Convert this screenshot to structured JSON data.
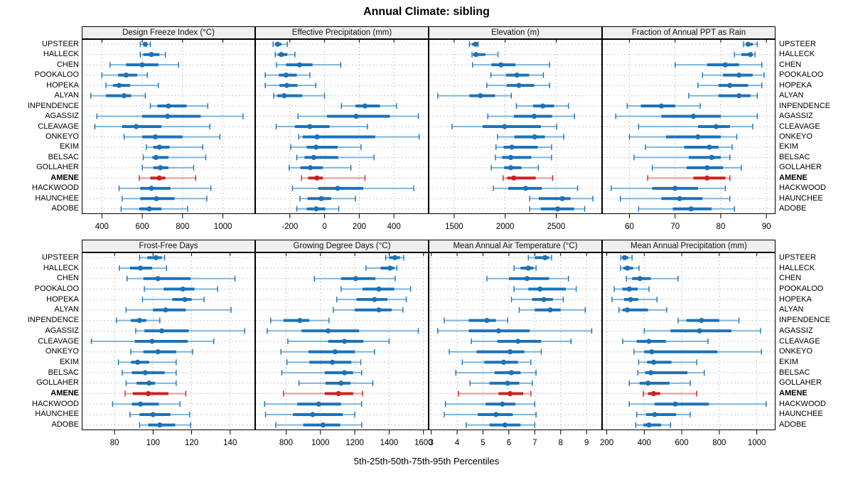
{
  "title": "Annual Climate: sibling",
  "caption": "5th-25th-50th-75th-95th Percentiles",
  "colors": {
    "series": "#1c72b8",
    "series_light": "#7fb5dc",
    "highlight": "#cc2222",
    "highlight_light": "#e09a9a",
    "strip_bg": "#efefef",
    "grid": "#c9c9c9",
    "border": "#000000"
  },
  "stations": [
    "UPSTEER",
    "HALLECK",
    "CHEN",
    "POOKALOO",
    "HOPEKA",
    "ALYAN",
    "INPENDENCE",
    "AGASSIZ",
    "CLEAVAGE",
    "ONKEYO",
    "EKIM",
    "BELSAC",
    "GOLLAHER",
    "AMENE",
    "HACKWOOD",
    "HAUNCHEE",
    "ADOBE"
  ],
  "highlight_station": "AMENE",
  "chart_data": {
    "type": "dotplot-percentiles",
    "percentiles": [
      5,
      25,
      50,
      75,
      95
    ],
    "legend_position": "none",
    "grid": "dotted",
    "panels": [
      {
        "title": "Design Freeze Index (°C)",
        "row": 0,
        "col": 0,
        "ticks": [
          400,
          600,
          800,
          1000
        ],
        "range": [
          300,
          1160
        ],
        "values": [
          [
            590,
            605,
            615,
            625,
            640
          ],
          [
            590,
            605,
            645,
            685,
            715
          ],
          [
            440,
            520,
            600,
            680,
            780
          ],
          [
            400,
            480,
            520,
            575,
            625
          ],
          [
            420,
            455,
            485,
            540,
            680
          ],
          [
            345,
            420,
            510,
            545,
            615
          ],
          [
            640,
            675,
            730,
            820,
            925
          ],
          [
            375,
            600,
            725,
            890,
            1100
          ],
          [
            365,
            500,
            570,
            695,
            935
          ],
          [
            510,
            600,
            665,
            800,
            985
          ],
          [
            620,
            655,
            685,
            735,
            900
          ],
          [
            605,
            650,
            668,
            730,
            915
          ],
          [
            600,
            655,
            690,
            730,
            855
          ],
          [
            585,
            640,
            685,
            715,
            865
          ],
          [
            485,
            590,
            645,
            740,
            940
          ],
          [
            500,
            590,
            670,
            760,
            920
          ],
          [
            495,
            585,
            635,
            695,
            825
          ]
        ]
      },
      {
        "title": "Effective Precipitation (mm)",
        "row": 0,
        "col": 1,
        "ticks": [
          -200,
          0,
          200,
          400
        ],
        "range": [
          -400,
          600
        ],
        "values": [
          [
            -297,
            -286,
            -271,
            -249,
            -215
          ],
          [
            -284,
            -270,
            -249,
            -215,
            -171
          ],
          [
            -277,
            -222,
            -144,
            -69,
            93
          ],
          [
            -342,
            -263,
            -222,
            -160,
            -85
          ],
          [
            -342,
            -260,
            -218,
            -156,
            -51
          ],
          [
            -293,
            -274,
            -233,
            -129,
            0
          ],
          [
            97,
            179,
            233,
            319,
            415
          ],
          [
            -153,
            14,
            182,
            377,
            541
          ],
          [
            -279,
            -171,
            -85,
            29,
            247
          ],
          [
            -149,
            -126,
            -43,
            292,
            545
          ],
          [
            -195,
            -103,
            -49,
            75,
            210
          ],
          [
            -160,
            -116,
            -62,
            79,
            285
          ],
          [
            -204,
            -140,
            -82,
            -10,
            152
          ],
          [
            -133,
            -95,
            -44,
            -10,
            233
          ],
          [
            -185,
            -37,
            75,
            223,
            514
          ],
          [
            -142,
            -98,
            -19,
            38,
            178
          ],
          [
            -160,
            -103,
            -48,
            4,
            82
          ]
        ]
      },
      {
        "title": "Elevation (m)",
        "row": 0,
        "col": 2,
        "ticks": [
          1500,
          2000,
          2500
        ],
        "range": [
          1250,
          2950
        ],
        "values": [
          [
            1650,
            1675,
            1710,
            1726,
            1735
          ],
          [
            1675,
            1685,
            1715,
            1805,
            1930
          ],
          [
            1680,
            1865,
            1960,
            2100,
            2435
          ],
          [
            1860,
            2010,
            2115,
            2235,
            2375
          ],
          [
            1820,
            2015,
            2135,
            2285,
            2435
          ],
          [
            1340,
            1650,
            1757,
            1900,
            2060
          ],
          [
            2110,
            2275,
            2370,
            2480,
            2620
          ],
          [
            1830,
            2085,
            2285,
            2460,
            2680
          ],
          [
            1480,
            1780,
            1995,
            2350,
            2505
          ],
          [
            1925,
            2090,
            2290,
            2390,
            2575
          ],
          [
            1910,
            1985,
            2065,
            2320,
            2455
          ],
          [
            1905,
            1970,
            2055,
            2255,
            2455
          ],
          [
            1865,
            1990,
            2055,
            2160,
            2325
          ],
          [
            1980,
            2020,
            2085,
            2300,
            2465
          ],
          [
            1885,
            2030,
            2200,
            2360,
            2710
          ],
          [
            2240,
            2330,
            2560,
            2640,
            2860
          ],
          [
            2240,
            2350,
            2515,
            2675,
            2780
          ]
        ]
      },
      {
        "title": "Fraction of Annual PPT as Rain",
        "row": 0,
        "col": 3,
        "ticks": [
          60,
          70,
          80,
          90
        ],
        "range": [
          54,
          92
        ],
        "values": [
          [
            85,
            85.5,
            86,
            87,
            88
          ],
          [
            83,
            84.5,
            86.5,
            87,
            87.5
          ],
          [
            70,
            77,
            81,
            84,
            89
          ],
          [
            76,
            80.5,
            84,
            87,
            89.5
          ],
          [
            75,
            79.5,
            82,
            86,
            89
          ],
          [
            73,
            79.5,
            84,
            86.5,
            88
          ],
          [
            59.5,
            62.5,
            67,
            70,
            75.5
          ],
          [
            57,
            67,
            74,
            80,
            88
          ],
          [
            62,
            75,
            79,
            82,
            87
          ],
          [
            60,
            68,
            75,
            80,
            83.5
          ],
          [
            63.5,
            72,
            77.5,
            79.5,
            82.5
          ],
          [
            61,
            73,
            78,
            80,
            82
          ],
          [
            65,
            72.5,
            77,
            80.5,
            84.5
          ],
          [
            64,
            74,
            77,
            81,
            82
          ],
          [
            56,
            65,
            70,
            75,
            81
          ],
          [
            58,
            67,
            71,
            76,
            82
          ],
          [
            62,
            69.5,
            73.5,
            78,
            83
          ]
        ]
      },
      {
        "title": "Frost-Free Days",
        "row": 1,
        "col": 0,
        "ticks": [
          80,
          100,
          120,
          140
        ],
        "range": [
          63,
          153
        ],
        "values": [
          [
            93,
            97,
            101.5,
            104.5,
            106
          ],
          [
            82.5,
            88,
            93.5,
            99.5,
            107
          ],
          [
            86.5,
            95,
            102.5,
            119.5,
            142.5
          ],
          [
            95.5,
            105.5,
            115.5,
            121.5,
            133.5
          ],
          [
            94.5,
            110,
            116.5,
            120,
            126.5
          ],
          [
            86,
            100,
            106.5,
            117,
            140.5
          ],
          [
            81,
            88.5,
            93,
            96.5,
            103.5
          ],
          [
            91,
            95.5,
            104.5,
            118.5,
            147.5
          ],
          [
            68,
            90.5,
            99.5,
            118,
            131.5
          ],
          [
            88.5,
            95,
            102.5,
            112,
            120.5
          ],
          [
            82,
            88.5,
            92,
            98,
            112
          ],
          [
            84,
            89,
            96,
            106,
            112
          ],
          [
            86,
            91.5,
            98,
            101,
            112
          ],
          [
            85.5,
            89.5,
            97.5,
            108,
            117
          ],
          [
            79,
            89,
            93.5,
            103,
            114
          ],
          [
            88,
            93,
            100,
            109,
            119
          ],
          [
            93,
            97.5,
            103.5,
            111.5,
            119.5
          ]
        ]
      },
      {
        "title": "Growing Degree Days (°C)",
        "row": 1,
        "col": 1,
        "ticks": [
          800,
          1000,
          1200,
          1400,
          1600
        ],
        "range": [
          620,
          1630
        ],
        "values": [
          [
            1380,
            1400,
            1433,
            1463,
            1485
          ],
          [
            1265,
            1350,
            1405,
            1430,
            1445
          ],
          [
            965,
            1120,
            1205,
            1320,
            1435
          ],
          [
            1120,
            1245,
            1340,
            1430,
            1525
          ],
          [
            1095,
            1210,
            1315,
            1390,
            1500
          ],
          [
            1075,
            1200,
            1340,
            1415,
            1480
          ],
          [
            710,
            785,
            880,
            935,
            1050
          ],
          [
            690,
            890,
            1045,
            1225,
            1570
          ],
          [
            810,
            1045,
            1140,
            1250,
            1400
          ],
          [
            770,
            930,
            1085,
            1200,
            1315
          ],
          [
            805,
            935,
            1070,
            1180,
            1235
          ],
          [
            775,
            1025,
            1140,
            1190,
            1240
          ],
          [
            875,
            1030,
            1120,
            1175,
            1305
          ],
          [
            785,
            1025,
            1105,
            1190,
            1245
          ],
          [
            675,
            865,
            990,
            1120,
            1240
          ],
          [
            680,
            840,
            955,
            1130,
            1200
          ],
          [
            740,
            900,
            1015,
            1115,
            1240
          ]
        ]
      },
      {
        "title": "Mean Annual Air Temperature (°C)",
        "row": 1,
        "col": 2,
        "ticks": [
          3,
          4,
          5,
          6,
          7,
          8,
          9
        ],
        "range": [
          2.9,
          9.6
        ],
        "values": [
          [
            6.75,
            7.0,
            7.4,
            7.55,
            7.65
          ],
          [
            6.2,
            6.45,
            6.75,
            6.95,
            7.05
          ],
          [
            5.15,
            6.0,
            6.7,
            7.55,
            8.3
          ],
          [
            6.2,
            6.75,
            7.2,
            8.2,
            8.6
          ],
          [
            6.1,
            6.9,
            7.35,
            7.7,
            8.1
          ],
          [
            6.4,
            7.0,
            7.6,
            8.0,
            8.95
          ],
          [
            3.5,
            4.45,
            5.15,
            5.5,
            5.95
          ],
          [
            3.25,
            4.45,
            5.6,
            6.8,
            9.2
          ],
          [
            4.55,
            5.55,
            6.35,
            7.25,
            8.4
          ],
          [
            3.7,
            4.75,
            6.05,
            6.6,
            7.25
          ],
          [
            4.2,
            5.05,
            5.8,
            6.35,
            6.85
          ],
          [
            3.95,
            5.45,
            6.1,
            6.45,
            7.05
          ],
          [
            4.5,
            5.25,
            5.95,
            6.4,
            6.9
          ],
          [
            4.05,
            5.6,
            6.05,
            6.55,
            6.85
          ],
          [
            3.55,
            5.1,
            5.75,
            6.25,
            7.0
          ],
          [
            3.5,
            4.8,
            5.5,
            6.15,
            7.05
          ],
          [
            4.35,
            5.25,
            5.85,
            6.45,
            7.0
          ]
        ]
      },
      {
        "title": "Mean Annual Precipitation (mm)",
        "row": 1,
        "col": 3,
        "ticks": [
          200,
          400,
          600,
          800,
          1000
        ],
        "range": [
          175,
          1100
        ],
        "values": [
          [
            275,
            282,
            295,
            315,
            335
          ],
          [
            273,
            288,
            310,
            340,
            372
          ],
          [
            305,
            335,
            377,
            435,
            580
          ],
          [
            240,
            283,
            320,
            365,
            425
          ],
          [
            228,
            292,
            327,
            368,
            468
          ],
          [
            265,
            285,
            310,
            420,
            520
          ],
          [
            580,
            625,
            705,
            800,
            905
          ],
          [
            400,
            540,
            695,
            865,
            1020
          ],
          [
            285,
            360,
            425,
            515,
            740
          ],
          [
            345,
            400,
            440,
            790,
            1025
          ],
          [
            370,
            415,
            450,
            545,
            680
          ],
          [
            365,
            405,
            435,
            630,
            720
          ],
          [
            320,
            375,
            420,
            535,
            645
          ],
          [
            395,
            420,
            450,
            485,
            680
          ],
          [
            320,
            455,
            565,
            745,
            1050
          ],
          [
            360,
            410,
            455,
            570,
            645
          ],
          [
            355,
            395,
            425,
            490,
            540
          ]
        ]
      }
    ]
  }
}
